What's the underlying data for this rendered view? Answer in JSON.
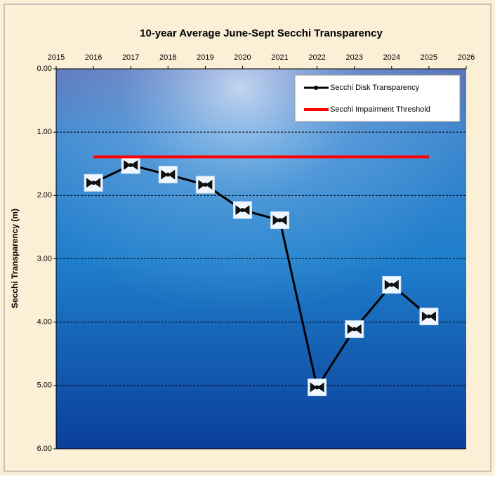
{
  "chart_data": {
    "type": "line",
    "title": "10-year Average June-Sept Secchi Transparency",
    "y_label": "Secchi Transparency (m)",
    "x": [
      2016,
      2017,
      2018,
      2019,
      2020,
      2021,
      2022,
      2023,
      2024,
      2025
    ],
    "series": [
      {
        "name": "Secchi Disk Transparency",
        "color": "#000000",
        "markers": true,
        "values": [
          1.8,
          1.52,
          1.67,
          1.83,
          2.23,
          2.39,
          5.03,
          4.11,
          3.41,
          3.91
        ]
      },
      {
        "name": "Secchi Impairment Threshold",
        "color": "#ff0000",
        "markers": false,
        "x": [
          2016,
          2025
        ],
        "values": [
          1.39,
          1.39
        ]
      }
    ],
    "xlim": [
      2015,
      2026
    ],
    "xticks": [
      2015,
      2016,
      2017,
      2018,
      2019,
      2020,
      2021,
      2022,
      2023,
      2024,
      2025,
      2026
    ],
    "ylim": [
      0,
      6
    ],
    "y_inverted": true,
    "yticks": [
      {
        "value": 0,
        "label": "0.00"
      },
      {
        "value": 1,
        "label": "1.00"
      },
      {
        "value": 2,
        "label": "2.00"
      },
      {
        "value": 3,
        "label": "3.00"
      },
      {
        "value": 4,
        "label": "4.00"
      },
      {
        "value": 5,
        "label": "5.00"
      },
      {
        "value": 6,
        "label": "6.00"
      }
    ],
    "grid": true,
    "legend": "upper right"
  }
}
